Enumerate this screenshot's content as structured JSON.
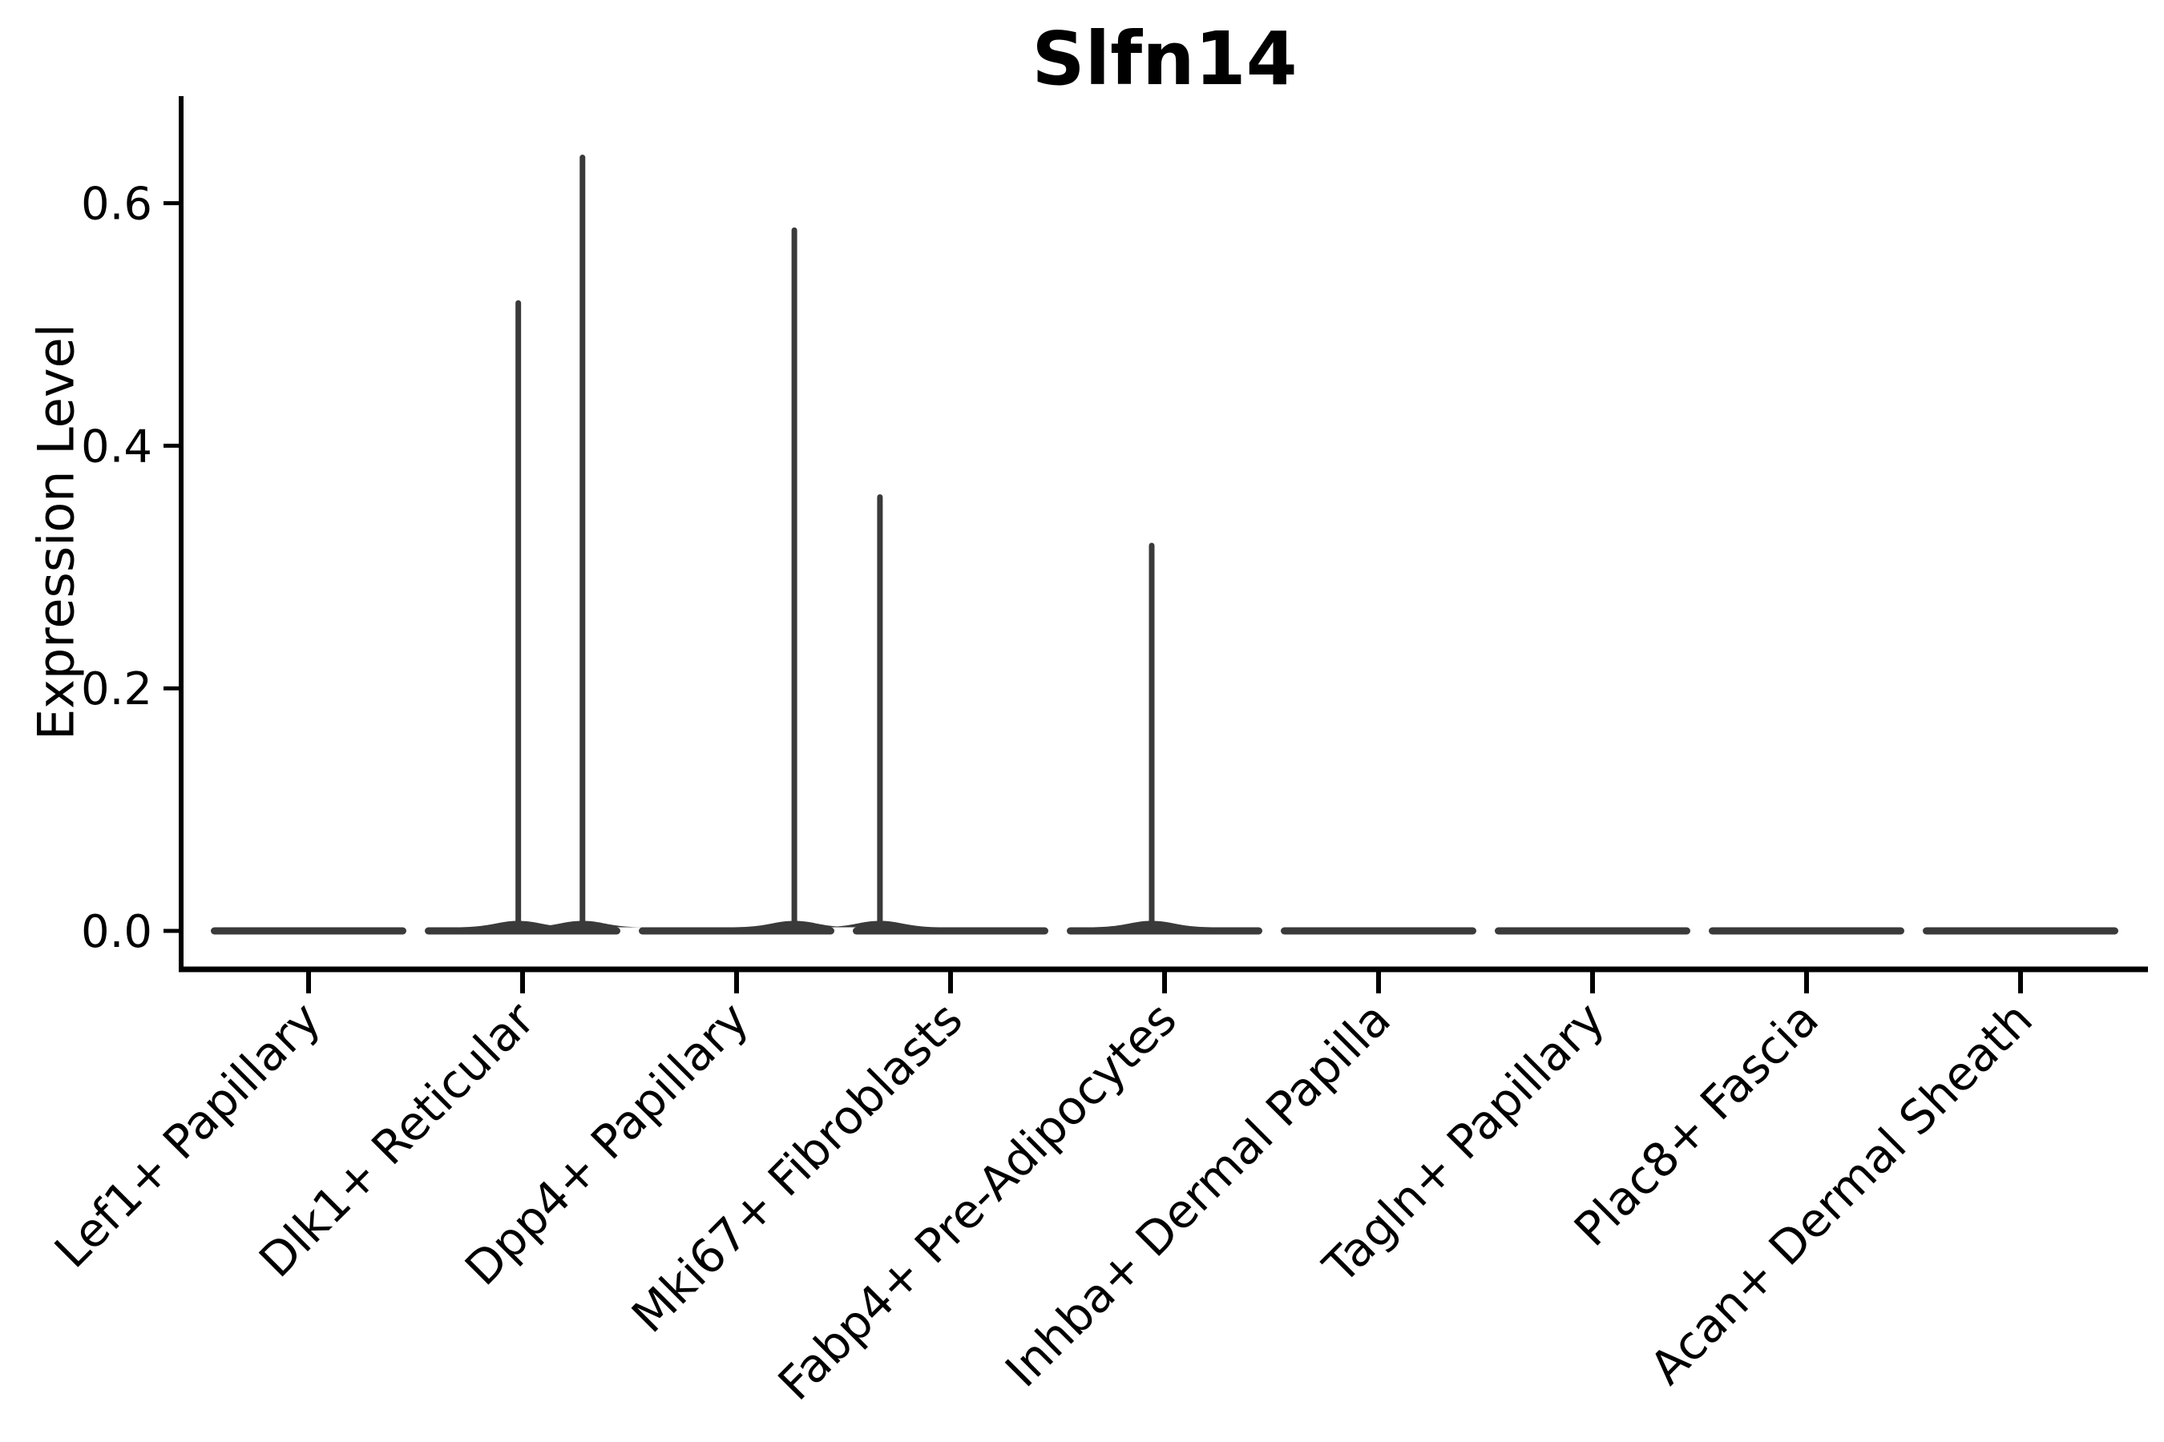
{
  "chart_data": {
    "type": "violin",
    "title": "Slfn14",
    "xlabel": "",
    "ylabel": "Expression Level",
    "categories": [
      "Lef1+ Papillary",
      "Dlk1+ Reticular",
      "Dpp4+ Papillary",
      "Mki67+ Fibroblasts",
      "Fabp4+ Pre-Adipocytes",
      "Inhba+ Dermal Papilla",
      "Tagln+ Papillary",
      "Plac8+ Fascia",
      "Acan+ Dermal Sheath"
    ],
    "yticks": [
      0.0,
      0.2,
      0.4,
      0.6
    ],
    "ylim": [
      -0.031,
      0.688
    ],
    "grid": false,
    "legend": null,
    "colors": {
      "violin": "#3a3a3a",
      "axis": "#000000",
      "text": "#000000",
      "background": "#ffffff"
    },
    "violins": [
      {
        "category": "Lef1+ Papillary",
        "body": "flat-at-zero",
        "spikes": []
      },
      {
        "category": "Dlk1+ Reticular",
        "body": "flat-at-zero",
        "spikes": [
          {
            "value": 0.52,
            "offset_frac": -0.02
          },
          {
            "value": 0.64,
            "offset_frac": 0.28
          }
        ]
      },
      {
        "category": "Dpp4+ Papillary",
        "body": "flat-at-zero",
        "spikes": [
          {
            "value": 0.58,
            "offset_frac": 0.27
          }
        ]
      },
      {
        "category": "Mki67+ Fibroblasts",
        "body": "flat-at-zero",
        "spikes": [
          {
            "value": 0.36,
            "offset_frac": -0.33
          }
        ]
      },
      {
        "category": "Fabp4+ Pre-Adipocytes",
        "body": "flat-at-zero",
        "spikes": [
          {
            "value": 0.32,
            "offset_frac": -0.06
          }
        ]
      },
      {
        "category": "Inhba+ Dermal Papilla",
        "body": "flat-at-zero",
        "spikes": []
      },
      {
        "category": "Tagln+ Papillary",
        "body": "flat-at-zero",
        "spikes": []
      },
      {
        "category": "Plac8+ Fascia",
        "body": "flat-at-zero",
        "spikes": []
      },
      {
        "category": "Acan+ Dermal Sheath",
        "body": "flat-at-zero",
        "spikes": []
      }
    ]
  }
}
